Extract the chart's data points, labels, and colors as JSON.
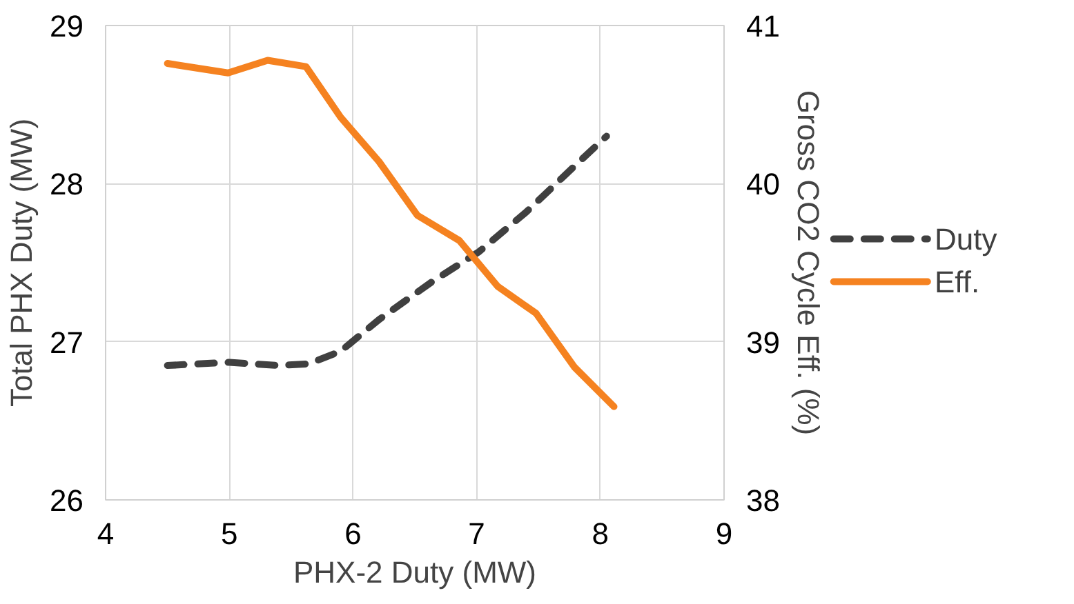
{
  "chart_data": {
    "type": "line",
    "xlabel": "PHX-2 Duty (MW)",
    "ylabel": "Total PHX Duty (MW)",
    "y2label": "Gross CO2 Cycle Eff. (%)",
    "xlim": [
      4,
      9
    ],
    "xticks": [
      4,
      5,
      6,
      7,
      8,
      9
    ],
    "ylim": [
      26,
      29
    ],
    "yticks": [
      26,
      27,
      28,
      29
    ],
    "y2lim": [
      38,
      41
    ],
    "y2ticks": [
      38,
      39,
      40,
      41
    ],
    "grid": true,
    "legend": "right",
    "series": [
      {
        "name": "Duty",
        "color": "#404040",
        "line_style": "dashed",
        "x": [
          4.5,
          5.0,
          5.4,
          5.64,
          5.9,
          6.21,
          6.64,
          7.02,
          7.4,
          7.79,
          8.05
        ],
        "values": [
          26.85,
          26.87,
          26.85,
          26.86,
          26.94,
          27.14,
          27.38,
          27.57,
          27.82,
          28.11,
          28.3
        ]
      },
      {
        "name": "Eff.",
        "color": "#f58220",
        "line_style": "solid",
        "axis": "y2",
        "x": [
          4.5,
          4.99,
          5.31,
          5.62,
          5.9,
          6.21,
          6.52,
          6.86,
          7.17,
          7.48,
          7.79,
          8.11
        ],
        "values": [
          40.76,
          40.7,
          40.78,
          40.74,
          40.42,
          40.14,
          39.8,
          39.64,
          39.35,
          39.18,
          38.84,
          38.59
        ]
      }
    ]
  }
}
